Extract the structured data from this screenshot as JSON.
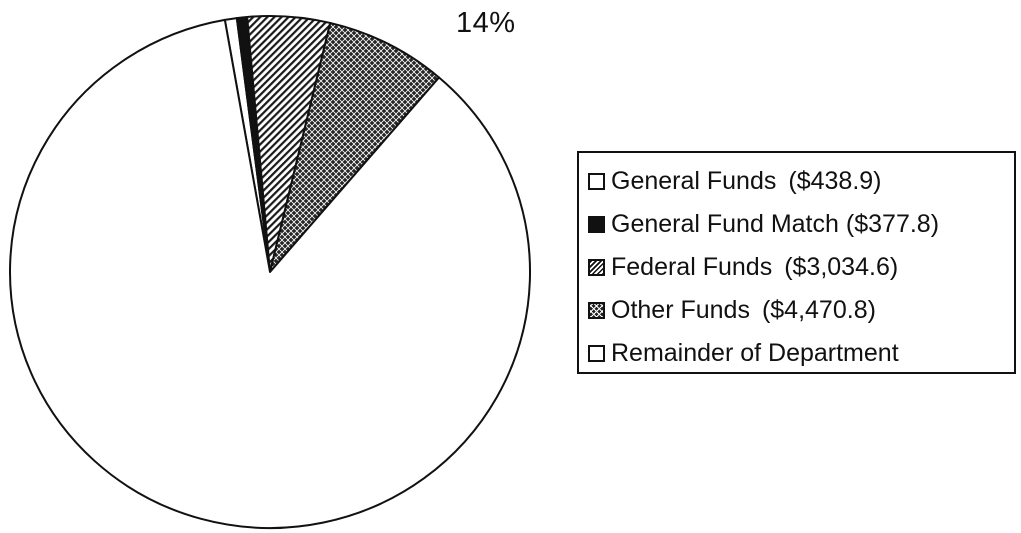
{
  "chart_data": {
    "type": "pie",
    "slice_label": "14%",
    "slices": [
      {
        "label": "General Funds",
        "value_text": "($438.9)",
        "value": 438.9,
        "pattern": "white",
        "color": "#ffffff"
      },
      {
        "label": "General Fund Match",
        "value_text": "($377.8)",
        "value": 377.8,
        "pattern": "black",
        "color": "#111111"
      },
      {
        "label": "Federal Funds",
        "value_text": "($3,034.6)",
        "value": 3034.6,
        "pattern": "diagonal-hatch",
        "color": "#777777"
      },
      {
        "label": "Other Funds",
        "value_text": "($4,470.8)",
        "value": 4470.8,
        "pattern": "crosshatch",
        "color": "#333333"
      },
      {
        "label": "Remainder of Department",
        "value_text": "",
        "value": 50952.3,
        "pattern": "white",
        "color": "#ffffff"
      }
    ],
    "legend_position": "right"
  }
}
